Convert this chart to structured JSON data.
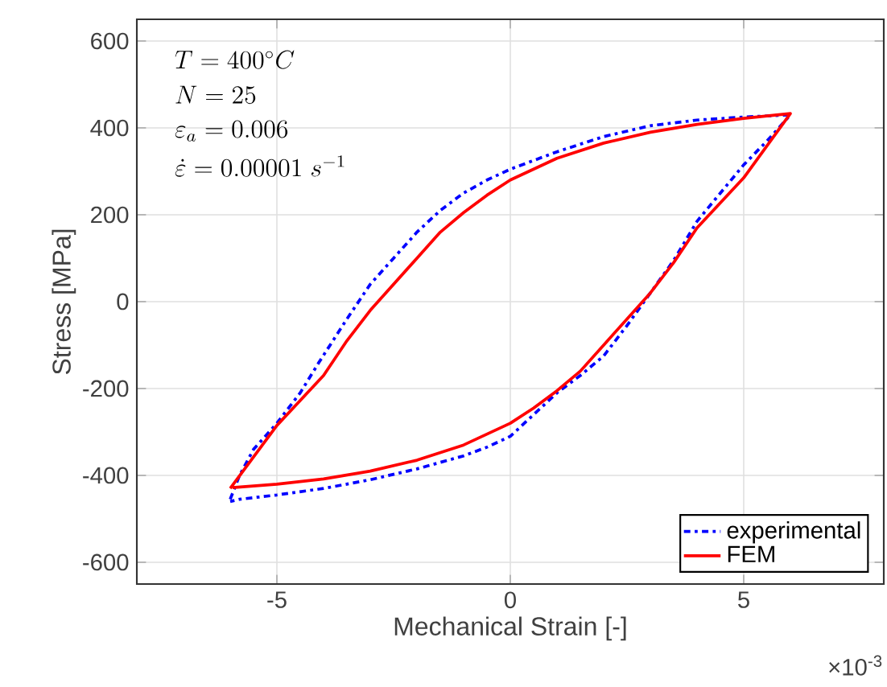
{
  "chart_data": {
    "type": "line",
    "xlabel": "Mechanical Strain [-]",
    "ylabel": "Stress [MPa]",
    "xlim": [
      -8,
      8
    ],
    "ylim": [
      -650,
      650
    ],
    "xticks": [
      -5,
      0,
      5
    ],
    "yticks": [
      -600,
      -400,
      -200,
      0,
      200,
      400,
      600
    ],
    "grid": true,
    "legend": "bottom right",
    "annotations": [
      "T = 400^\\circ C",
      "N = 25",
      "\\varepsilon_a = 0.006",
      "\\dot{\\varepsilon} = 0.00001\\ s^{-1}",
      "×10$^{-3}$"
    ],
    "series": [
      {
        "name": "experimental",
        "color": "#0000ff",
        "line_style": "dashdot",
        "x": [
          -6,
          -5.8,
          -5.5,
          -5,
          -4.5,
          -4.1,
          -3.5,
          -3,
          -2.5,
          -2,
          -1.5,
          -1,
          -0.5,
          0,
          1,
          2,
          3,
          4,
          5,
          6,
          5.5,
          5,
          4.5,
          4,
          3.5,
          3,
          2.5,
          2,
          1.5,
          1,
          0.5,
          0,
          -0.5,
          -1,
          -2,
          -3,
          -4,
          -5,
          -5.8,
          -6
        ],
        "values": [
          -455,
          -400,
          -340,
          -280,
          -210,
          -140,
          -40,
          40,
          100,
          160,
          210,
          250,
          280,
          305,
          345,
          380,
          405,
          418,
          425,
          430,
          370,
          315,
          250,
          185,
          95,
          20,
          -55,
          -125,
          -170,
          -210,
          -260,
          -310,
          -335,
          -355,
          -385,
          -410,
          -430,
          -445,
          -455,
          -460
        ]
      },
      {
        "name": "FEM",
        "color": "#ff0000",
        "line_style": "solid",
        "x": [
          -6,
          -5,
          -4,
          -3.5,
          -3,
          -2.5,
          -2,
          -1.5,
          -1,
          -0.5,
          0,
          1,
          2,
          3,
          4,
          5,
          6,
          5,
          4,
          3.5,
          3,
          2.5,
          2,
          1.5,
          1,
          0.5,
          0,
          -1,
          -2,
          -3,
          -4,
          -5,
          -5.95
        ],
        "values": [
          -430,
          -285,
          -170,
          -90,
          -20,
          40,
          100,
          160,
          205,
          245,
          280,
          330,
          365,
          390,
          408,
          422,
          433,
          285,
          170,
          90,
          20,
          -40,
          -100,
          -160,
          -205,
          -245,
          -280,
          -330,
          -365,
          -390,
          -408,
          -420,
          -428
        ]
      }
    ]
  }
}
